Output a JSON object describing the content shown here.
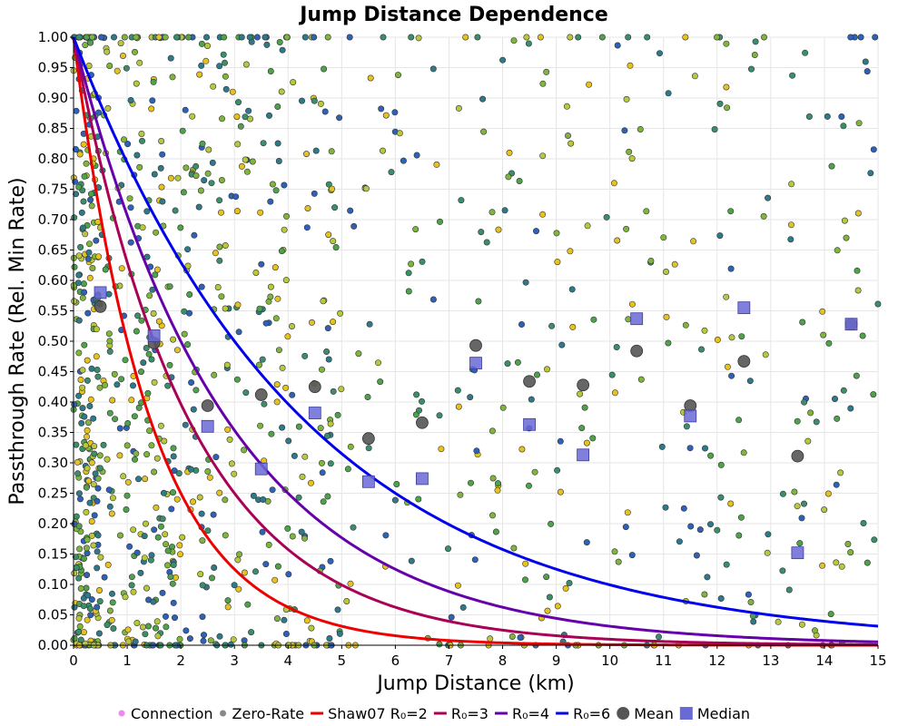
{
  "chart_data": {
    "type": "scatter",
    "title": "Jump Distance Dependence",
    "xlabel": "Jump Distance (km)",
    "ylabel": "Passthrough Rate (Rel. Min Rate)",
    "xlim": [
      0,
      15
    ],
    "ylim": [
      0,
      1
    ],
    "grid": true,
    "legend_position": "bottom",
    "x_ticks": [
      0,
      1,
      2,
      3,
      4,
      5,
      6,
      7,
      8,
      9,
      10,
      11,
      12,
      13,
      14,
      15
    ],
    "x_tick_labels": [
      "0",
      "1",
      "2",
      "3",
      "4",
      "5",
      "6",
      "7",
      "8",
      "9",
      "10",
      "11",
      "12",
      "13",
      "14",
      "15"
    ],
    "y_ticks": [
      0,
      0.05,
      0.1,
      0.15,
      0.2,
      0.25,
      0.3,
      0.35,
      0.4,
      0.45,
      0.5,
      0.55,
      0.6,
      0.65,
      0.7,
      0.75,
      0.8,
      0.85,
      0.9,
      0.95,
      1.0
    ],
    "y_tick_labels": [
      "0.00",
      "0.05",
      "0.10",
      "0.15",
      "0.20",
      "0.25",
      "0.30",
      "0.35",
      "0.40",
      "0.45",
      "0.50",
      "0.55",
      "0.60",
      "0.65",
      "0.70",
      "0.75",
      "0.80",
      "0.85",
      "0.90",
      "0.95",
      "1.00"
    ],
    "legend": [
      {
        "label": "Connection",
        "kind": "dot",
        "color": "#ee88ee"
      },
      {
        "label": "Zero-Rate",
        "kind": "dot",
        "color": "#888888"
      },
      {
        "label": "Shaw07 R₀=2",
        "kind": "line",
        "color": "#ee0000"
      },
      {
        "label": "R₀=3",
        "kind": "line",
        "color": "#aa0055"
      },
      {
        "label": "R₀=4",
        "kind": "line",
        "color": "#6600aa"
      },
      {
        "label": "R₀=6",
        "kind": "line",
        "color": "#0000ee"
      },
      {
        "label": "Mean",
        "kind": "circle",
        "color": "#555555"
      },
      {
        "label": "Median",
        "kind": "square",
        "color": "#6a6ad6"
      }
    ],
    "curves": [
      {
        "name": "Shaw07 R₀=2",
        "color": "#ee0000",
        "decay_rate_per_km": 0.6931
      },
      {
        "name": "R₀=3",
        "color": "#aa0055",
        "decay_rate_per_km": 0.4621
      },
      {
        "name": "R₀=4",
        "color": "#6600aa",
        "decay_rate_per_km": 0.3466
      },
      {
        "name": "R₀=6",
        "color": "#0000ee",
        "decay_rate_per_km": 0.231
      }
    ],
    "mean": {
      "x": [
        0.5,
        1.5,
        2.5,
        3.5,
        4.5,
        5.5,
        6.5,
        7.5,
        8.5,
        9.5,
        10.5,
        11.5,
        12.5,
        13.5,
        14.5
      ],
      "y": [
        0.557,
        0.497,
        0.394,
        0.412,
        0.425,
        0.34,
        0.366,
        0.493,
        0.434,
        0.428,
        0.484,
        0.394,
        0.467,
        0.311,
        0.528
      ],
      "color": "#555555"
    },
    "median": {
      "x": [
        0.5,
        1.5,
        2.5,
        3.5,
        4.5,
        5.5,
        6.5,
        7.5,
        8.5,
        9.5,
        10.5,
        11.5,
        12.5,
        13.5,
        14.5
      ],
      "y": [
        0.58,
        0.509,
        0.36,
        0.29,
        0.382,
        0.269,
        0.274,
        0.464,
        0.363,
        0.313,
        0.537,
        0.377,
        0.555,
        0.152,
        0.528
      ],
      "color": "#6a6ad6"
    },
    "connections": {
      "count": 1200,
      "seed": 20240611,
      "colors": [
        "#e6c21e",
        "#b8c83a",
        "#7fb53c",
        "#4ea24a",
        "#3a8f6a",
        "#2e7a8a",
        "#2e62b8"
      ],
      "note": "individual connection passthrough rates (scatter cloud)"
    }
  }
}
